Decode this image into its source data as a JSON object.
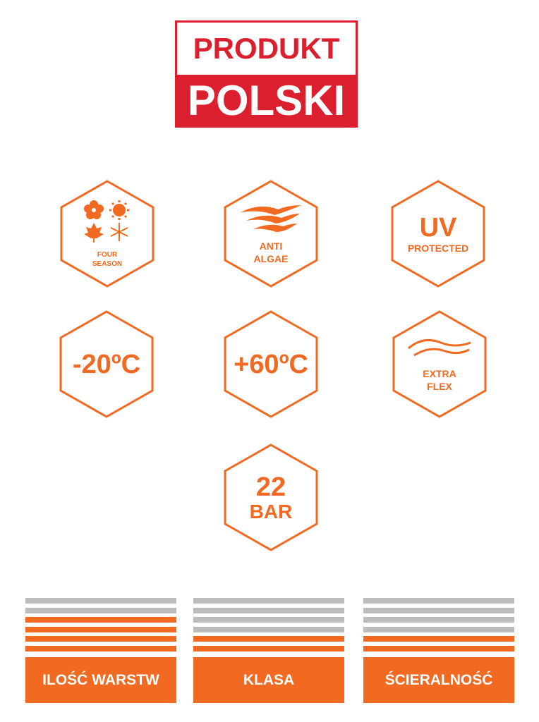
{
  "logo": {
    "line1": "PRODUKT",
    "line2": "POLSKI",
    "color": "#dc1f2e"
  },
  "accent": "#f26a21",
  "badges": [
    {
      "icon": "four-seasons-icon",
      "line1": "FOUR",
      "line2": "SEASON"
    },
    {
      "icon": "algae-waves-icon",
      "line1": "ANTI",
      "line2": "ALGAE"
    },
    {
      "big": "UV",
      "small": "PROTECTED"
    },
    {
      "big": "-20ºC"
    },
    {
      "big": "+60ºC"
    },
    {
      "icon": "flex-curves-icon",
      "line1": "EXTRA",
      "line2": "FLEX"
    },
    {
      "big": "22",
      "small": "BAR"
    }
  ],
  "ratings": [
    {
      "label": "ILOŚĆ WARSTW",
      "filled": 4,
      "total": 6
    },
    {
      "label": "KLASA",
      "filled": 2,
      "total": 6
    },
    {
      "label": "ŚCIERALNOŚĆ",
      "filled": 2,
      "total": 6
    }
  ]
}
